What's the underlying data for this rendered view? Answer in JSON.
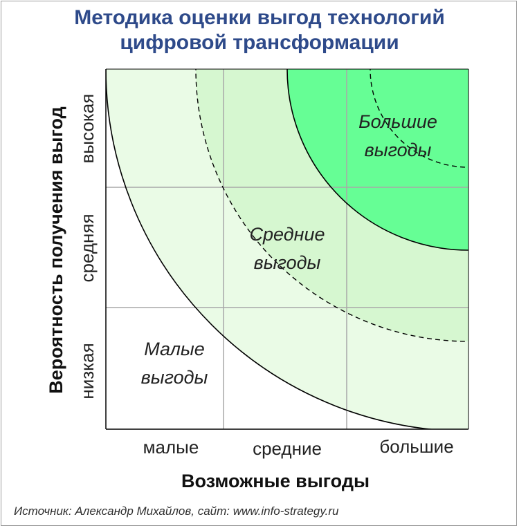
{
  "title": {
    "line1": "Методика оценки выгод технологий",
    "line2": "цифровой трансформации"
  },
  "axes": {
    "x_label": "Возможные выгоды",
    "y_label": "Вероятность получения выгод",
    "x_ticks": [
      "малые",
      "средние",
      "большие"
    ],
    "y_ticks": [
      "низкая",
      "средняя",
      "высокая"
    ]
  },
  "zones": {
    "small": [
      "Малые",
      "выгоды"
    ],
    "medium": [
      "Средние",
      "выгоды"
    ],
    "large": [
      "Большие",
      "выгоды"
    ]
  },
  "colors": {
    "title": "#2e4a8a",
    "zone_outer": "#eafbe6",
    "zone_middle": "#d6f7d0",
    "zone_inner": "#66fe95",
    "grid": "#a8a8a8",
    "curve": "#000000"
  },
  "source": "Источник: Александр Михайлов, сайт: www.info-strategy.ru"
}
